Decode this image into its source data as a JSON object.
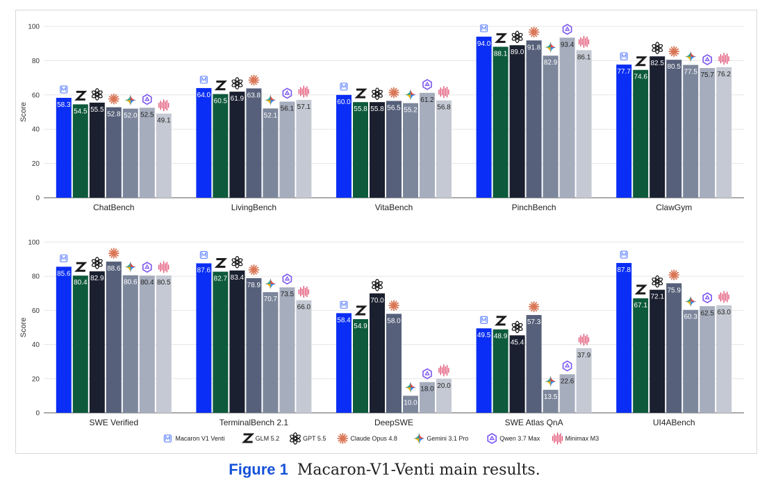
{
  "caption": {
    "label": "Figure 1",
    "text": "Macaron-V1-Venti main results."
  },
  "chart_data": [
    {
      "type": "bar",
      "ylabel": "Score",
      "ylim": [
        0,
        100
      ],
      "yticks": [
        0,
        20,
        40,
        60,
        80,
        100
      ],
      "grid": true,
      "categories": [
        "ChatBench",
        "LivingBench",
        "VitaBench",
        "PinchBench",
        "ClawGym"
      ],
      "series": [
        {
          "name": "Macaron V1 Venti",
          "color": "#0a2ef5",
          "icon": "macaron-logo-icon",
          "values": [
            58.3,
            64.0,
            60.0,
            94.0,
            77.7
          ]
        },
        {
          "name": "GLM 5.2",
          "color": "#0d5a3c",
          "icon": "glm-z-logo-icon",
          "values": [
            54.5,
            60.5,
            55.8,
            88.1,
            74.6
          ]
        },
        {
          "name": "GPT 5.5",
          "color": "#1b2030",
          "icon": "openai-logo-icon",
          "values": [
            55.5,
            61.9,
            55.8,
            89.0,
            82.5
          ]
        },
        {
          "name": "Claude Opus 4.8",
          "color": "#56607a",
          "icon": "claude-starburst-icon",
          "values": [
            52.8,
            63.8,
            56.5,
            91.8,
            80.5
          ]
        },
        {
          "name": "Gemini 3.1 Pro",
          "color": "#7d879c",
          "icon": "gemini-sparkle-icon",
          "values": [
            52.0,
            52.1,
            55.2,
            82.9,
            77.5
          ]
        },
        {
          "name": "Qwen 3.7 Max",
          "color": "#a6adbd",
          "icon": "qwen-logo-icon",
          "values": [
            52.5,
            56.1,
            61.2,
            93.4,
            75.7
          ]
        },
        {
          "name": "Minimax M3",
          "color": "#c5c9d3",
          "icon": "minimax-wave-icon",
          "values": [
            49.1,
            57.1,
            56.8,
            86.1,
            76.2
          ]
        }
      ]
    },
    {
      "type": "bar",
      "ylabel": "Score",
      "ylim": [
        0,
        100
      ],
      "yticks": [
        0,
        20,
        40,
        60,
        80,
        100
      ],
      "grid": true,
      "categories": [
        "SWE Verified",
        "TerminalBench 2.1",
        "DeepSWE",
        "SWE Atlas QnA",
        "UI4ABench"
      ],
      "series": [
        {
          "name": "Macaron V1 Venti",
          "color": "#0a2ef5",
          "icon": "macaron-logo-icon",
          "values": [
            85.6,
            87.6,
            58.4,
            49.5,
            87.8
          ]
        },
        {
          "name": "GLM 5.2",
          "color": "#0d5a3c",
          "icon": "glm-z-logo-icon",
          "values": [
            80.4,
            82.7,
            54.9,
            48.9,
            67.1
          ]
        },
        {
          "name": "GPT 5.5",
          "color": "#1b2030",
          "icon": "openai-logo-icon",
          "values": [
            82.9,
            83.4,
            70.0,
            45.4,
            72.1
          ]
        },
        {
          "name": "Claude Opus 4.8",
          "color": "#56607a",
          "icon": "claude-starburst-icon",
          "values": [
            88.6,
            78.9,
            58.0,
            57.3,
            75.9
          ]
        },
        {
          "name": "Gemini 3.1 Pro",
          "color": "#7d879c",
          "icon": "gemini-sparkle-icon",
          "values": [
            80.6,
            70.7,
            10.0,
            13.5,
            60.3
          ]
        },
        {
          "name": "Qwen 3.7 Max",
          "color": "#a6adbd",
          "icon": "qwen-logo-icon",
          "values": [
            80.4,
            73.5,
            18.0,
            22.6,
            62.5
          ]
        },
        {
          "name": "Minimax M3",
          "color": "#c5c9d3",
          "icon": "minimax-wave-icon",
          "values": [
            80.5,
            66.0,
            20.0,
            37.9,
            63.0
          ]
        }
      ]
    }
  ],
  "legend": {
    "placement": "bottom-center"
  }
}
